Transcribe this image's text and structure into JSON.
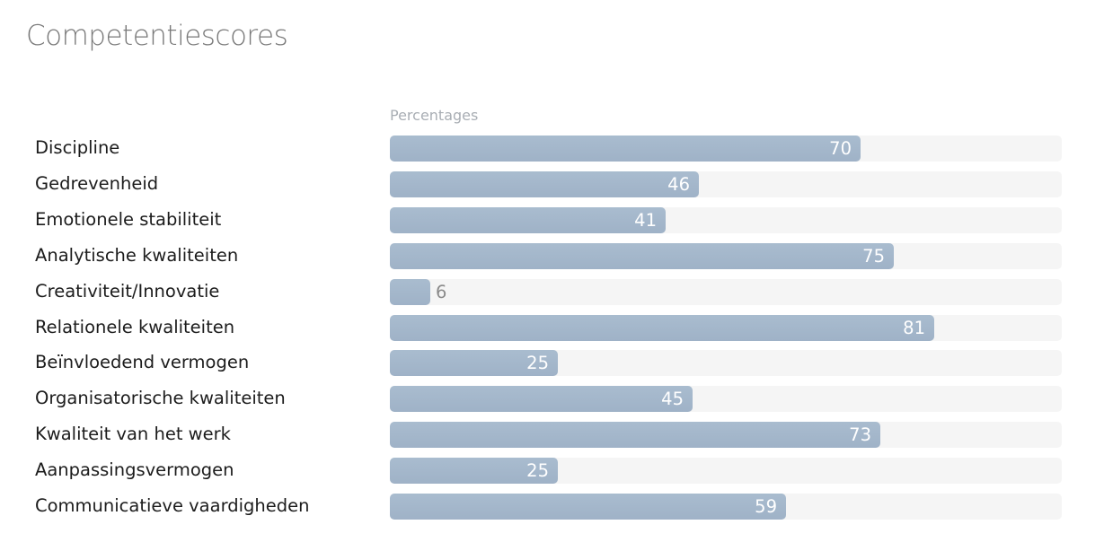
{
  "title": "Competentiescores",
  "chart_data": {
    "type": "bar",
    "orientation": "horizontal",
    "xlabel": "Percentages",
    "xlim": [
      0,
      100
    ],
    "grid": false,
    "categories": [
      "Discipline",
      "Gedrevenheid",
      "Emotionele stabiliteit",
      "Analytische kwaliteiten",
      "Creativiteit/Innovatie",
      "Relationele kwaliteiten",
      "Beïnvloedend vermogen",
      "Organisatorische kwaliteiten",
      "Kwaliteit van het werk",
      "Aanpassingsvermogen",
      "Communicatieve vaardigheden"
    ],
    "values": [
      70,
      46,
      41,
      75,
      6,
      81,
      25,
      45,
      73,
      25,
      59
    ],
    "colors": {
      "bar": "#a3b6ca",
      "track": "#f5f5f5",
      "value_inside": "#ffffff",
      "value_outside": "#8a8a8a"
    }
  }
}
